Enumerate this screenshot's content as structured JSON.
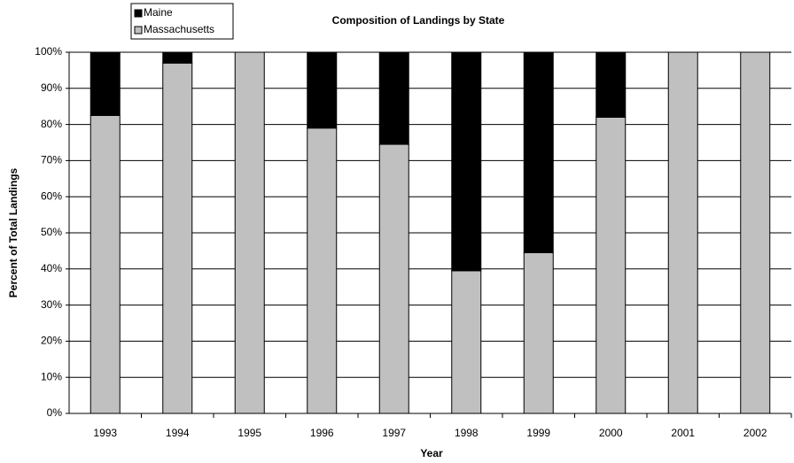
{
  "chart_data": {
    "type": "stacked_bar",
    "title": "Composition of Landings by State",
    "x_label": "Year",
    "y_label": "Percent of Total Landings",
    "categories": [
      "1993",
      "1994",
      "1995",
      "1996",
      "1997",
      "1998",
      "1999",
      "2000",
      "2001",
      "2002"
    ],
    "series": [
      {
        "name": "Massachusetts",
        "color": "#c0c0c0",
        "values": [
          82.5,
          97,
          100,
          79,
          74.5,
          39.5,
          44.5,
          82,
          100,
          100
        ]
      },
      {
        "name": "Maine",
        "color": "#000000",
        "values": [
          17.5,
          3,
          0,
          21,
          25.5,
          60.5,
          55.5,
          18,
          0,
          0
        ]
      }
    ],
    "ylim": [
      0,
      100
    ],
    "yticks": [
      {
        "value": 0,
        "label": "0%"
      },
      {
        "value": 10,
        "label": "10%"
      },
      {
        "value": 20,
        "label": "20%"
      },
      {
        "value": 30,
        "label": "30%"
      },
      {
        "value": 40,
        "label": "40%"
      },
      {
        "value": 50,
        "label": "50%"
      },
      {
        "value": 60,
        "label": "60%"
      },
      {
        "value": 70,
        "label": "70%"
      },
      {
        "value": 80,
        "label": "80%"
      },
      {
        "value": 90,
        "label": "90%"
      },
      {
        "value": 100,
        "label": "100%"
      }
    ],
    "grid": true,
    "legend": "top-left"
  }
}
